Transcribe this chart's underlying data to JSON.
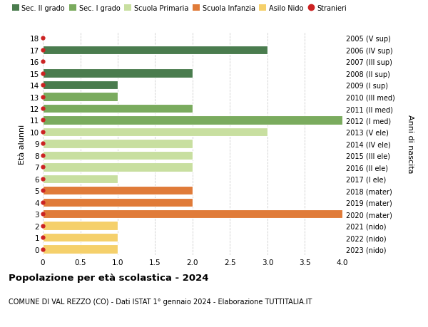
{
  "ages": [
    18,
    17,
    16,
    15,
    14,
    13,
    12,
    11,
    10,
    9,
    8,
    7,
    6,
    5,
    4,
    3,
    2,
    1,
    0
  ],
  "right_labels": [
    "2005 (V sup)",
    "2006 (IV sup)",
    "2007 (III sup)",
    "2008 (II sup)",
    "2009 (I sup)",
    "2010 (III med)",
    "2011 (II med)",
    "2012 (I med)",
    "2013 (V ele)",
    "2014 (IV ele)",
    "2015 (III ele)",
    "2016 (II ele)",
    "2017 (I ele)",
    "2018 (mater)",
    "2019 (mater)",
    "2020 (mater)",
    "2021 (nido)",
    "2022 (nido)",
    "2023 (nido)"
  ],
  "values": [
    0,
    3,
    0,
    2,
    1,
    1,
    2,
    4,
    3,
    2,
    2,
    2,
    1,
    2,
    2,
    4,
    1,
    1,
    1
  ],
  "colors": [
    "#4a7c4e",
    "#4a7c4e",
    "#4a7c4e",
    "#4a7c4e",
    "#4a7c4e",
    "#7aab5e",
    "#7aab5e",
    "#7aab5e",
    "#c8dfa0",
    "#c8dfa0",
    "#c8dfa0",
    "#c8dfa0",
    "#c8dfa0",
    "#e07b39",
    "#e07b39",
    "#e07b39",
    "#f5d06b",
    "#f5d06b",
    "#f5d06b"
  ],
  "stranieri_ages": [
    18,
    17,
    16,
    15,
    14,
    13,
    12,
    11,
    10,
    9,
    8,
    7,
    6,
    5,
    4,
    3,
    2,
    1,
    0
  ],
  "legend_labels": [
    "Sec. II grado",
    "Sec. I grado",
    "Scuola Primaria",
    "Scuola Infanzia",
    "Asilo Nido",
    "Stranieri"
  ],
  "legend_colors": [
    "#4a7c4e",
    "#7aab5e",
    "#c8dfa0",
    "#e07b39",
    "#f5d06b",
    "#cc2222"
  ],
  "xlim": [
    0,
    4.0
  ],
  "xticks": [
    0,
    0.5,
    1.0,
    1.5,
    2.0,
    2.5,
    3.0,
    3.5,
    4.0
  ],
  "xtick_labels": [
    "0",
    "0.5",
    "1.0",
    "1.5",
    "2.0",
    "2.5",
    "3.0",
    "3.5",
    "4.0"
  ],
  "ylabel_left": "Età alunni",
  "ylabel_right": "Anni di nascita",
  "title": "Popolazione per età scolastica - 2024",
  "subtitle": "COMUNE DI VAL REZZO (CO) - Dati ISTAT 1° gennaio 2024 - Elaborazione TUTTITALIA.IT",
  "bg_color": "#ffffff",
  "grid_color": "#cccccc",
  "bar_height": 0.75,
  "dot_color": "#cc2222",
  "dot_size": 3.5
}
